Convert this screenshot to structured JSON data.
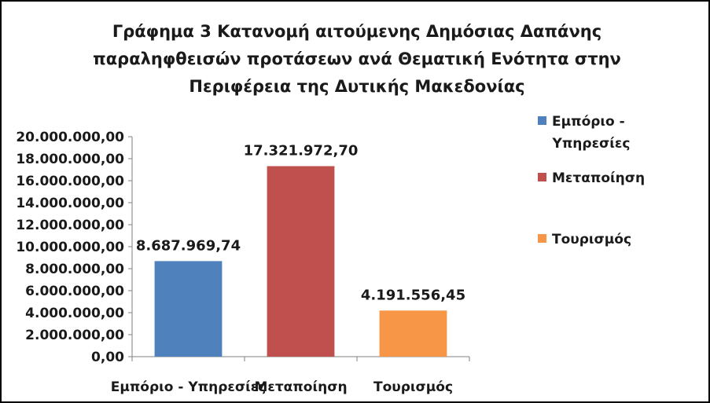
{
  "chart_data": {
    "type": "bar",
    "title": [
      "Γράφημα 3 Κατανομή αιτούμενης Δημόσιας Δαπάνης",
      "παραληφθεισών προτάσεων ανά Θεματική Ενότητα στην",
      "Περιφέρεια της Δυτικής Μακεδονίας"
    ],
    "categories": [
      "Εμπόριο - Υπηρεσίες",
      "Μεταποίηση",
      "Τουρισμός"
    ],
    "values": [
      8687969.74,
      17321972.7,
      4191556.45
    ],
    "data_labels": [
      "8.687.969,74",
      "17.321.972,70",
      "4.191.556,45"
    ],
    "colors": [
      "#4f81bd",
      "#c0504d",
      "#f79646"
    ],
    "ylim": [
      0,
      20000000
    ],
    "y_ticks": [
      "0,00",
      "2.000.000,00",
      "4.000.000,00",
      "6.000.000,00",
      "8.000.000,00",
      "10.000.000,00",
      "12.000.000,00",
      "14.000.000,00",
      "16.000.000,00",
      "18.000.000,00",
      "20.000.000,00"
    ],
    "grid": false,
    "legend": {
      "position": "right",
      "entries": [
        {
          "lines": [
            "Εμπόριο -",
            "Υπηρεσίες"
          ],
          "color": "#4f81bd"
        },
        {
          "lines": [
            "Μεταποίηση"
          ],
          "color": "#c0504d"
        },
        {
          "lines": [
            "Τουρισμός"
          ],
          "color": "#f79646"
        }
      ]
    }
  }
}
